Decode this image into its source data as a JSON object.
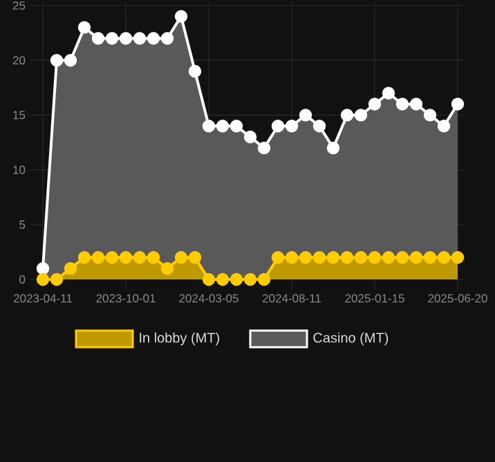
{
  "chart_data": {
    "type": "area",
    "categories": [
      "2023-04-11",
      null,
      null,
      null,
      null,
      null,
      "2023-10-01",
      null,
      null,
      null,
      null,
      null,
      "2024-03-05",
      null,
      null,
      null,
      null,
      null,
      "2024-08-11",
      null,
      null,
      null,
      null,
      null,
      "2025-01-15",
      null,
      null,
      null,
      null,
      null,
      "2025-06-20"
    ],
    "series": [
      {
        "name": "In lobby (MT)",
        "color": "#ffcc00",
        "values": [
          0,
          0,
          1,
          2,
          2,
          2,
          2,
          2,
          2,
          1,
          2,
          2,
          0,
          0,
          0,
          0,
          0,
          2,
          2,
          2,
          2,
          2,
          2,
          2,
          2,
          2,
          2,
          2,
          2,
          2,
          2
        ]
      },
      {
        "name": "Casino (MT)",
        "color": "#ffffff",
        "values": [
          1,
          20,
          20,
          23,
          22,
          22,
          22,
          22,
          22,
          22,
          24,
          19,
          14,
          14,
          14,
          13,
          12,
          14,
          14,
          15,
          14,
          12,
          15,
          15,
          16,
          17,
          16,
          16,
          15,
          14,
          16
        ]
      }
    ],
    "ylim": [
      0,
      25
    ],
    "yticks": [
      0,
      5,
      10,
      15,
      20,
      25
    ],
    "grid": true,
    "legend": "bottom",
    "marker": "circle"
  }
}
